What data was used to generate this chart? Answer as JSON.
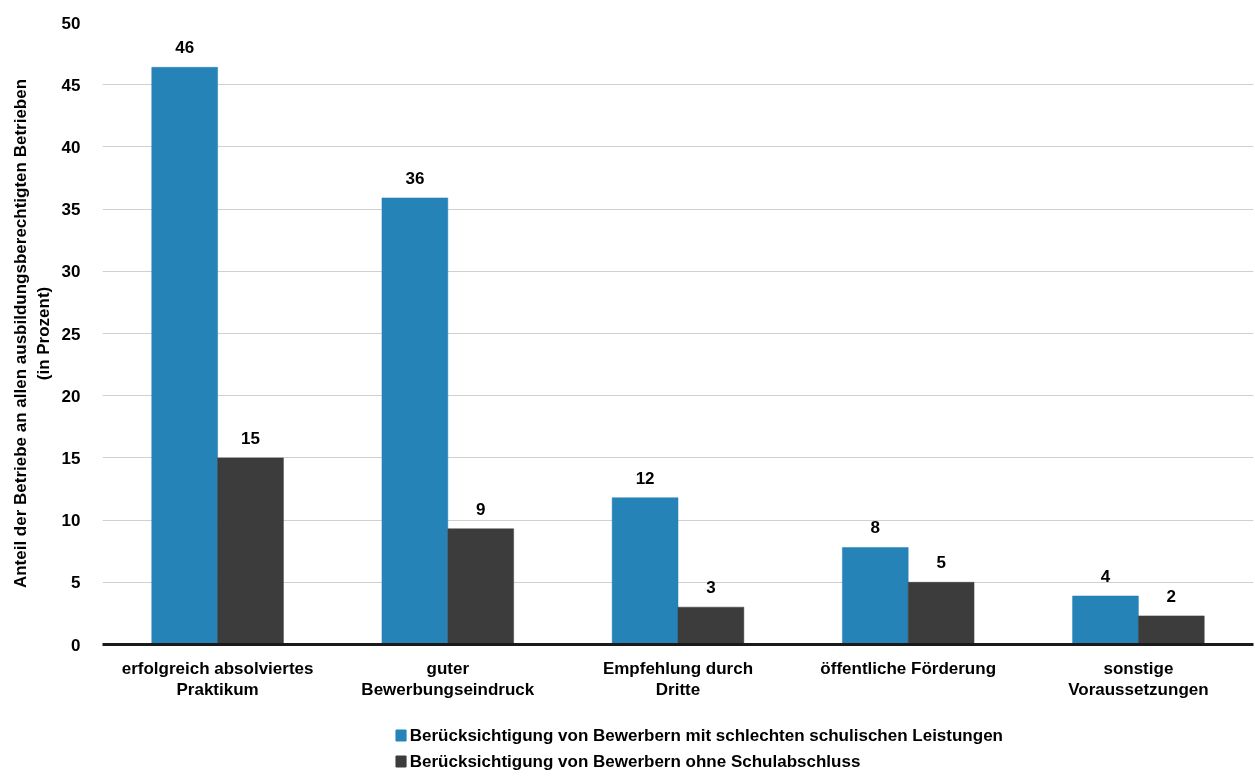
{
  "chart_data": {
    "type": "bar",
    "categories": [
      "erfolgreich absolviertes\nPraktikum",
      "guter\nBewerbungseindruck",
      "Empfehlung durch\nDritte",
      "öffentliche Förderung",
      "sonstige\nVoraussetzungen"
    ],
    "series": [
      {
        "name": "Berücksichtigung von Bewerbern mit schlechten schulischen Leistungen",
        "color": "#2683b8",
        "values": [
          46.4,
          35.9,
          11.8,
          7.8,
          3.9
        ],
        "value_labels": [
          "46",
          "36",
          "12",
          "8",
          "4"
        ]
      },
      {
        "name": "Berücksichtigung von Bewerbern ohne Schulabschluss",
        "color": "#3c3c3c",
        "values": [
          15.0,
          9.3,
          3.0,
          5.0,
          2.3
        ],
        "value_labels": [
          "15",
          "9",
          "3",
          "5",
          "2"
        ]
      }
    ],
    "ylabel": "Anteil der Betriebe an allen ausbildungsberechtigten Betrieben\n(in Prozent)",
    "ylim": [
      0,
      50
    ],
    "yticks": [
      0,
      5,
      10,
      15,
      20,
      25,
      30,
      35,
      40,
      45,
      50
    ],
    "grid": "y",
    "legend": "bottom"
  }
}
